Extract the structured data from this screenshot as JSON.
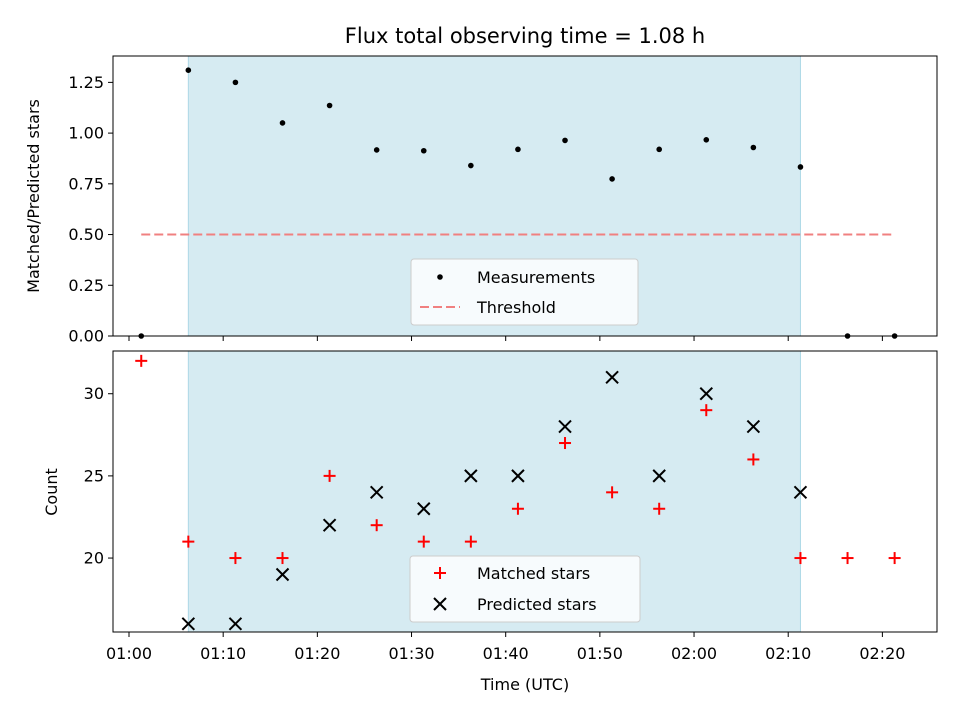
{
  "chart_data": {
    "type": "scatter",
    "title": "Flux total observing time = 1.08 h",
    "xlabel": "Time (UTC)",
    "x_tick_labels": [
      "01:00",
      "01:10",
      "01:20",
      "01:30",
      "01:40",
      "01:50",
      "02:00",
      "02:10",
      "02:20"
    ],
    "x_ticks_minutes": [
      60,
      70,
      80,
      90,
      100,
      110,
      120,
      130,
      140
    ],
    "xlim_minutes": [
      58.3,
      145.8
    ],
    "shaded_interval_minutes": [
      66.3,
      131.3
    ],
    "shade_color": "#add8e6",
    "panels": [
      {
        "id": "ratio",
        "ylabel": "Matched/Predicted stars",
        "ylim": [
          0,
          1.38
        ],
        "y_ticks": [
          0.0,
          0.25,
          0.5,
          0.75,
          1.0,
          1.25
        ],
        "y_tick_labels": [
          "0.00",
          "0.25",
          "0.50",
          "0.75",
          "1.00",
          "1.25"
        ],
        "series": [
          {
            "name": "Measurements",
            "marker": "dot",
            "color": "#000000",
            "x": [
              61.3,
              66.3,
              71.3,
              76.3,
              81.3,
              86.3,
              91.3,
              96.3,
              101.3,
              106.3,
              111.3,
              116.3,
              121.3,
              126.3,
              131.3,
              136.3,
              141.3
            ],
            "y": [
              0.0,
              1.31,
              1.25,
              1.05,
              1.136,
              0.917,
              0.913,
              0.84,
              0.92,
              0.964,
              0.774,
              0.92,
              0.967,
              0.929,
              0.833,
              0.0,
              0.0
            ]
          },
          {
            "name": "Threshold",
            "style": "dashed-line",
            "color": "#f08080",
            "x": [
              61.3,
              141.3
            ],
            "y": [
              0.5,
              0.5
            ]
          }
        ],
        "legend": {
          "position": "lower-center",
          "entries": [
            "Measurements",
            "Threshold"
          ]
        }
      },
      {
        "id": "count",
        "ylabel": "Count",
        "ylim": [
          15.5,
          32.6
        ],
        "y_ticks": [
          20,
          25,
          30
        ],
        "y_tick_labels": [
          "20",
          "25",
          "30"
        ],
        "series": [
          {
            "name": "Matched stars",
            "marker": "plus",
            "color": "#ff0000",
            "x": [
              61.3,
              66.3,
              71.3,
              76.3,
              81.3,
              86.3,
              91.3,
              96.3,
              101.3,
              106.3,
              111.3,
              116.3,
              121.3,
              126.3,
              131.3,
              136.3,
              141.3
            ],
            "y": [
              32,
              21,
              20,
              20,
              25,
              22,
              21,
              21,
              23,
              27,
              24,
              23,
              29,
              26,
              20,
              20,
              20
            ]
          },
          {
            "name": "Predicted stars",
            "marker": "x",
            "color": "#000000",
            "x": [
              66.3,
              71.3,
              76.3,
              81.3,
              86.3,
              91.3,
              96.3,
              101.3,
              106.3,
              111.3,
              116.3,
              121.3,
              126.3,
              131.3
            ],
            "y": [
              16,
              16,
              19,
              22,
              24,
              23,
              25,
              25,
              28,
              31,
              25,
              30,
              28,
              24
            ]
          }
        ],
        "legend": {
          "position": "lower-center",
          "entries": [
            "Matched stars",
            "Predicted stars"
          ]
        }
      }
    ]
  }
}
